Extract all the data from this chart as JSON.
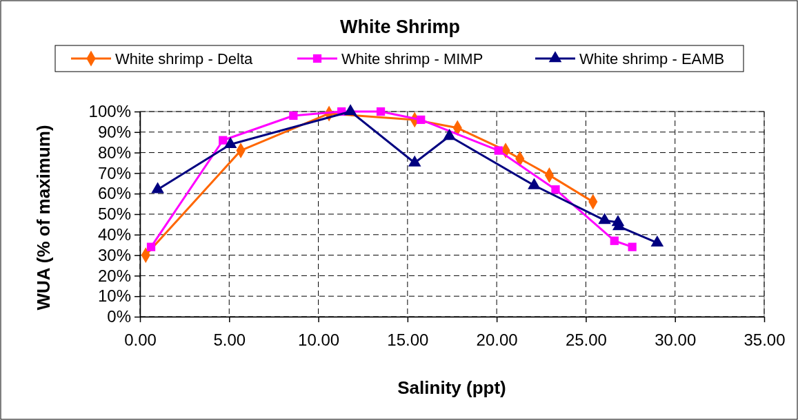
{
  "chart_data": {
    "type": "line",
    "title": "White Shrimp",
    "xlabel": "Salinity (ppt)",
    "ylabel": "WUA (% of maximum)",
    "series": [
      {
        "name": "White shrimp - Delta",
        "color": "#ff6600",
        "marker": "diamond",
        "x": [
          0.32,
          5.65,
          10.6,
          15.4,
          17.8,
          20.5,
          21.3,
          22.95,
          25.4
        ],
        "values": [
          30,
          81,
          99,
          96,
          92,
          81,
          77,
          69,
          56
        ]
      },
      {
        "name": "White shrimp - MIMP",
        "color": "#ff00ff",
        "marker": "square",
        "x": [
          0.62,
          4.65,
          8.6,
          11.3,
          13.5,
          15.75,
          20.1,
          23.3,
          26.6,
          27.6
        ],
        "values": [
          34,
          86,
          98,
          100,
          100,
          96,
          81,
          62,
          37,
          34
        ]
      },
      {
        "name": "White shrimp - EAMB",
        "color": "#000080",
        "marker": "triangle",
        "x": [
          0.99,
          5.07,
          11.8,
          15.4,
          17.35,
          22.1,
          26.05,
          26.8,
          26.85,
          29.0
        ],
        "values": [
          62,
          84,
          100,
          75,
          88,
          64,
          47,
          46,
          44,
          36
        ]
      }
    ],
    "xlim": [
      0,
      35
    ],
    "xticks": [
      {
        "value": 0,
        "label": "0.00"
      },
      {
        "value": 5,
        "label": "5.00"
      },
      {
        "value": 10,
        "label": "10.00"
      },
      {
        "value": 15,
        "label": "15.00"
      },
      {
        "value": 20,
        "label": "20.00"
      },
      {
        "value": 25,
        "label": "25.00"
      },
      {
        "value": 30,
        "label": "30.00"
      },
      {
        "value": 35,
        "label": "35.00"
      }
    ],
    "ylim": [
      0,
      100
    ],
    "yticks": [
      {
        "value": 0,
        "label": "0%"
      },
      {
        "value": 10,
        "label": "10%"
      },
      {
        "value": 20,
        "label": "20%"
      },
      {
        "value": 30,
        "label": "30%"
      },
      {
        "value": 40,
        "label": "40%"
      },
      {
        "value": 50,
        "label": "50%"
      },
      {
        "value": 60,
        "label": "60%"
      },
      {
        "value": 70,
        "label": "70%"
      },
      {
        "value": 80,
        "label": "80%"
      },
      {
        "value": 90,
        "label": "90%"
      },
      {
        "value": 100,
        "label": "100%"
      }
    ],
    "grid": true,
    "legend": "top",
    "line_style": "solid"
  }
}
